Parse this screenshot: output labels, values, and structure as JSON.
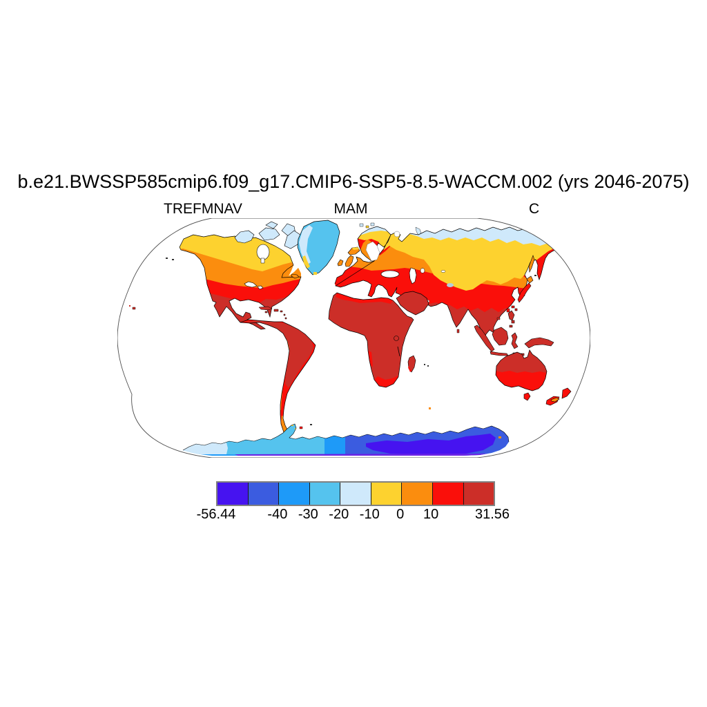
{
  "figure": {
    "title": "b.e21.BWSSP585cmip6.f09_g17.CMIP6-SSP5-8.5-WACCM.002 (yrs 2046-2075)",
    "left_label": "TREFMNAV",
    "center_label": "MAM",
    "right_label": "C"
  },
  "palette": {
    "c1": "#4613f0",
    "c2": "#3b5ce0",
    "c3": "#1e9af8",
    "c4": "#55c3ee",
    "c5": "#cfe9fb",
    "c6": "#fdd22f",
    "c7": "#fb8d0e",
    "c8": "#fa0f0a",
    "c9": "#cc2e28",
    "antarcticaDeep": "#6c25e6",
    "tibetSpeck": "#b7cdd9",
    "lake": "#ffffff",
    "coast": "#000000",
    "mapBorder": "#4d4d4d",
    "ocean": "#ffffff"
  },
  "chart_data": {
    "type": "heatmap",
    "subtype": "filled_contour_global_map",
    "projection": "Robinson",
    "title": "b.e21.BWSSP585cmip6.f09_g17.CMIP6-SSP5-8.5-WACCM.002 (yrs 2046-2075)",
    "variable": "TREFMNAV",
    "season": "MAM",
    "units": "C",
    "years": "2046-2075",
    "ocean_masked": true,
    "grid": false,
    "data_min": -56.44,
    "data_max": 31.56,
    "contour_levels": [
      -56.44,
      -50,
      -40,
      -30,
      -20,
      -10,
      0,
      10,
      20,
      31.56
    ],
    "colorbar": {
      "orientation": "horizontal",
      "colors": [
        "#4613f0",
        "#3b5ce0",
        "#1e9af8",
        "#55c3ee",
        "#cfe9fb",
        "#fdd22f",
        "#fb8d0e",
        "#fa0f0a",
        "#cc2e28"
      ],
      "cell_bounds": [
        [
          -56.44,
          -50
        ],
        [
          -50,
          -40
        ],
        [
          -40,
          -30
        ],
        [
          -30,
          -20
        ],
        [
          -20,
          -10
        ],
        [
          -10,
          0
        ],
        [
          0,
          10
        ],
        [
          10,
          20
        ],
        [
          20,
          31.56
        ]
      ],
      "tick_labels": [
        "-56.44",
        "-40",
        "-30",
        "-20",
        "-10",
        "0",
        "10",
        "31.56"
      ],
      "tick_positions": [
        0,
        0.2222,
        0.3333,
        0.4444,
        0.5556,
        0.6667,
        0.7778,
        1
      ]
    },
    "regions": [
      {
        "region": "East Antarctica interior",
        "approx_value_c": "-56 to -40"
      },
      {
        "region": "West Antarctica and Antarctic coast",
        "approx_value_c": "-40 to -20"
      },
      {
        "region": "Greenland interior",
        "approx_value_c": "-30 to -20"
      },
      {
        "region": "Canadian Arctic islands, northernmost Siberia",
        "approx_value_c": "-20 to -10"
      },
      {
        "region": "Alaska, northern Canada, Scandinavia, Siberia, Tibet plateau",
        "approx_value_c": "-10 to 0"
      },
      {
        "region": "Southern Canada, central Europe, Russia, Patagonia, Andes, New Zealand interior",
        "approx_value_c": "0 to 10"
      },
      {
        "region": "USA, southern Europe, Central Asia, northern China, southern South America, southern Australia",
        "approx_value_c": "10 to 20"
      },
      {
        "region": "Mexico, tropical South America, Africa, Middle East, India, SE Asia, northern Australia",
        "approx_value_c": "20 to 31.56"
      }
    ]
  }
}
